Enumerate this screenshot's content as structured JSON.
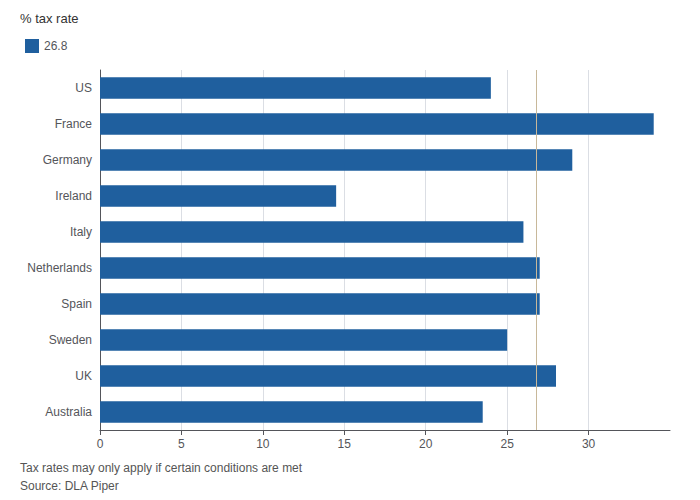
{
  "chart_data": {
    "type": "bar",
    "orientation": "horizontal",
    "xlabel": "% tax rate",
    "categories": [
      "US",
      "France",
      "Germany",
      "Ireland",
      "Italy",
      "Netherlands",
      "Spain",
      "Sweden",
      "UK",
      "Australia"
    ],
    "series": [
      {
        "name": "26.8",
        "color": "#1f5f9e",
        "values": [
          24.0,
          34.0,
          29.0,
          14.5,
          26.0,
          27.0,
          27.0,
          25.0,
          28.0,
          23.5
        ]
      }
    ],
    "reference_line": {
      "value": 26.8,
      "color": "#c8b89a"
    },
    "xlim": [
      0,
      35
    ],
    "xticks": [
      0,
      5,
      10,
      15,
      20,
      25,
      30
    ],
    "grid": true,
    "legend": "upper left",
    "annotations": [
      "Tax rates may only apply if certain conditions are met",
      "Source: DLA Piper"
    ]
  }
}
